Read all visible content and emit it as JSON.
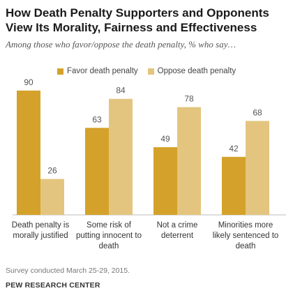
{
  "chart_data": {
    "type": "bar",
    "title": "How Death Penalty Supporters and Opponents View Its Morality, Fairness and Effectiveness",
    "subtitle": "Among those who favor/oppose the death penalty, % who say…",
    "categories": [
      [
        "Death penalty is",
        "morally justified"
      ],
      [
        "Some risk of",
        "putting innocent to",
        "death"
      ],
      [
        "Not a crime",
        "deterrent"
      ],
      [
        "Minorities more",
        "likely sentenced to",
        "death"
      ]
    ],
    "series": [
      {
        "name": "Favor death penalty",
        "values": [
          90,
          63,
          49,
          42
        ],
        "color": "#d4a22b"
      },
      {
        "name": "Oppose death penalty",
        "values": [
          26,
          84,
          78,
          68
        ],
        "color": "#e3c57f"
      }
    ],
    "ylim": [
      0,
      100
    ],
    "grid": false,
    "legend_position": "top"
  },
  "footer": {
    "note": "Survey conducted March 25-29, 2015.",
    "source": "PEW RESEARCH CENTER"
  }
}
